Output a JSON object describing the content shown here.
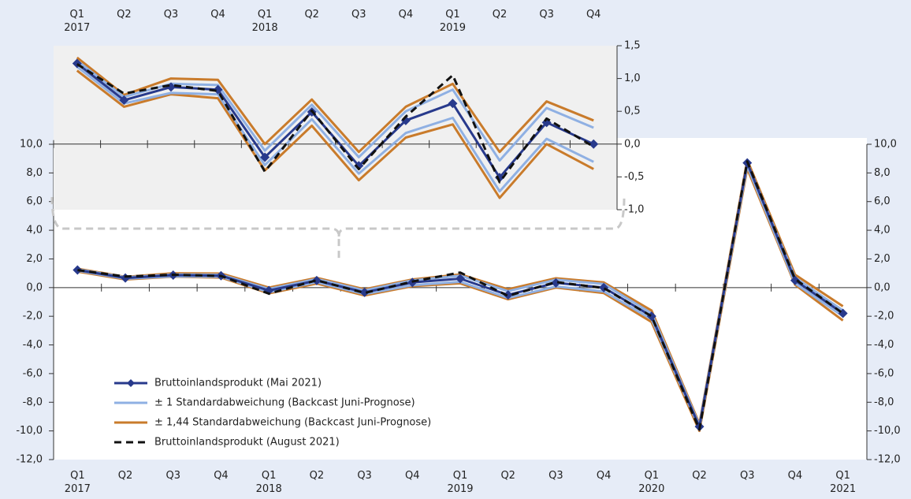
{
  "chart_data": [
    {
      "type": "line",
      "categories": [
        "Q1 2017",
        "Q2",
        "Q3",
        "Q4",
        "Q1 2018",
        "Q2",
        "Q3",
        "Q4",
        "Q1 2019",
        "Q2",
        "Q3",
        "Q4",
        "Q1 2020",
        "Q2",
        "Q3",
        "Q4",
        "Q1 2021"
      ],
      "ylim": [
        -12,
        10
      ],
      "yticks": [
        {
          "value": -12,
          "label": "-12,0"
        },
        {
          "value": -10,
          "label": "-10,0"
        },
        {
          "value": -8,
          "label": "-8,0"
        },
        {
          "value": -6,
          "label": "-6,0"
        },
        {
          "value": -4,
          "label": "-4,0"
        },
        {
          "value": -2,
          "label": "-2,0"
        },
        {
          "value": 0,
          "label": "0,0"
        },
        {
          "value": 2,
          "label": "2,0"
        },
        {
          "value": 4,
          "label": "4,0"
        },
        {
          "value": 6,
          "label": "6,0"
        },
        {
          "value": 8,
          "label": "8,0"
        },
        {
          "value": 10,
          "label": "10,0"
        }
      ],
      "series": [
        {
          "name": "Bruttoinlandsprodukt (Mai 2021)",
          "color": "#283a8c",
          "marker": "diamond",
          "values": [
            1.23,
            0.67,
            0.87,
            0.83,
            -0.2,
            0.49,
            -0.33,
            0.36,
            0.62,
            -0.51,
            0.33,
            0.0,
            -2.0,
            -9.7,
            8.7,
            0.5,
            -1.8
          ]
        },
        {
          "name": "± 1 Standardabweichung (Backcast Juni-Prognose)",
          "color": "#8fb0e3",
          "upper": [
            1.27,
            0.72,
            0.92,
            0.9,
            -0.1,
            0.6,
            -0.2,
            0.5,
            0.83,
            -0.25,
            0.55,
            0.25,
            -1.8,
            -9.6,
            8.7,
            0.7,
            -1.6
          ],
          "lower": [
            1.18,
            0.62,
            0.78,
            0.76,
            -0.32,
            0.38,
            -0.45,
            0.17,
            0.4,
            -0.72,
            0.08,
            -0.27,
            -2.2,
            -9.8,
            8.5,
            0.3,
            -2.0
          ]
        },
        {
          "name": "± 1,44 Standardabweichung (Backcast Juni-Prognose)",
          "color": "#c97b2b",
          "upper": [
            1.32,
            0.75,
            1.0,
            0.98,
            0.0,
            0.68,
            -0.12,
            0.57,
            0.92,
            -0.12,
            0.65,
            0.36,
            -1.6,
            -9.5,
            8.9,
            0.9,
            -1.3
          ],
          "lower": [
            1.12,
            0.57,
            0.76,
            0.7,
            -0.4,
            0.28,
            -0.55,
            0.1,
            0.3,
            -0.82,
            0.0,
            -0.38,
            -2.4,
            -10.0,
            8.3,
            0.2,
            -2.3
          ]
        },
        {
          "name": "Bruttoinlandsprodukt (August 2021)",
          "color": "#111111",
          "dashed": true,
          "values": [
            1.22,
            0.77,
            0.9,
            0.81,
            -0.42,
            0.51,
            -0.38,
            0.42,
            1.05,
            -0.58,
            0.39,
            -0.04,
            -2.0,
            -9.9,
            8.8,
            0.6,
            -1.8
          ]
        }
      ]
    },
    {
      "type": "line",
      "categories": [
        "Q1 2017",
        "Q2",
        "Q3",
        "Q4",
        "Q1 2018",
        "Q2",
        "Q3",
        "Q4",
        "Q1 2019",
        "Q2",
        "Q3",
        "Q4"
      ],
      "ylim": [
        -1,
        1.5
      ],
      "yticks": [
        {
          "value": -1,
          "label": "-1,0"
        },
        {
          "value": -0.5,
          "label": "-0,5"
        },
        {
          "value": 0,
          "label": "0,0"
        },
        {
          "value": 0.5,
          "label": "0,5"
        },
        {
          "value": 1,
          "label": "1,0"
        },
        {
          "value": 1.5,
          "label": "1,5"
        }
      ]
    }
  ]
}
